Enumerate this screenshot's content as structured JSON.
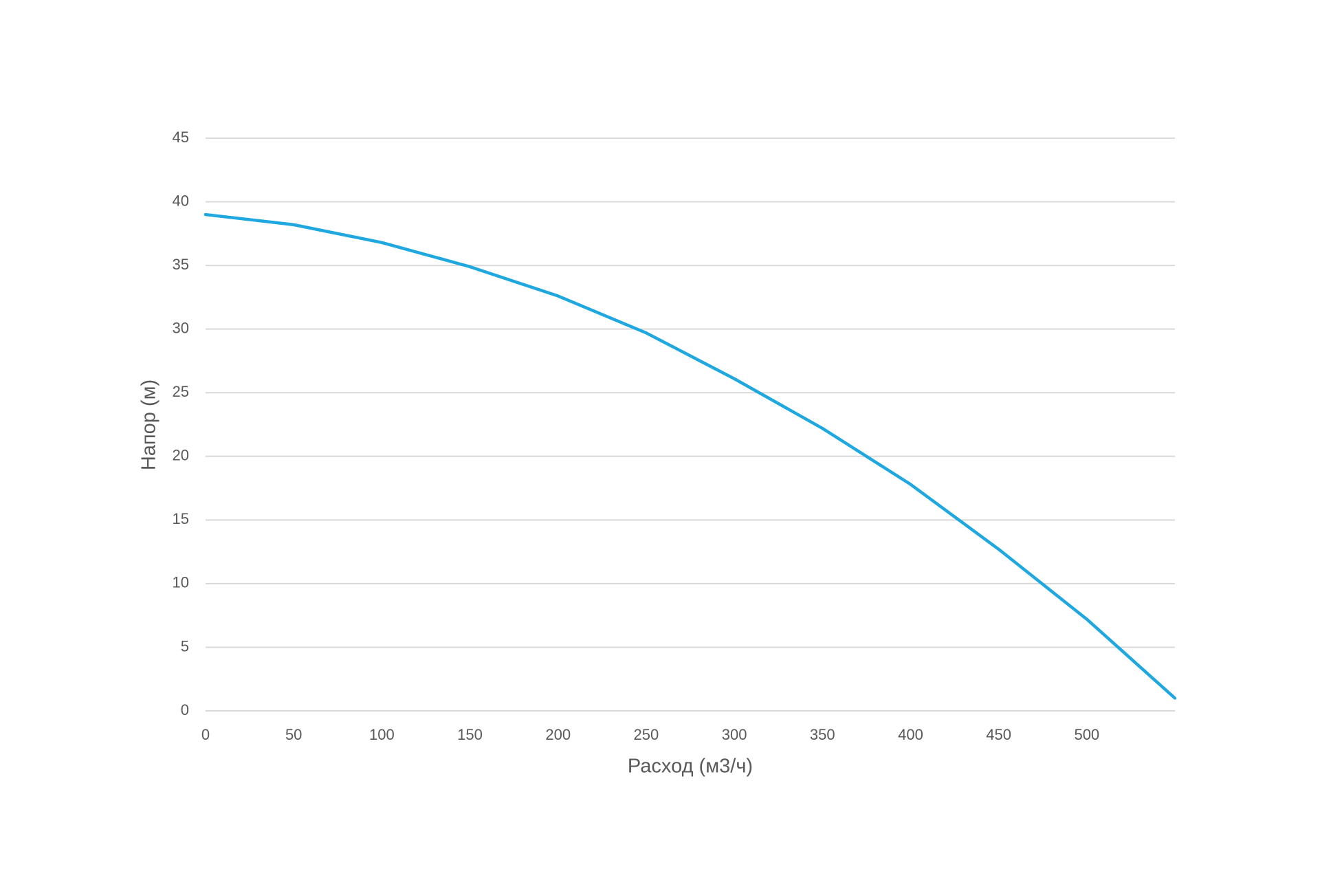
{
  "chart_data": {
    "type": "line",
    "x_label": "Расход (м3/ч)",
    "y_label": "Напор (м)",
    "x": [
      0,
      50,
      100,
      150,
      200,
      250,
      300,
      350,
      400,
      450,
      500,
      550
    ],
    "series": [
      {
        "color": "#1fa8e0",
        "values": [
          39,
          38.2,
          36.8,
          34.9,
          32.6,
          29.7,
          26.1,
          22.2,
          17.8,
          12.7,
          7.2,
          1
        ]
      }
    ],
    "xlim": [
      0,
      550
    ],
    "xticks": [
      0,
      50,
      100,
      150,
      200,
      250,
      300,
      350,
      400,
      450,
      500
    ],
    "ylim": [
      0,
      45
    ],
    "yticks": [
      0,
      5,
      10,
      15,
      20,
      25,
      30,
      35,
      40,
      45
    ],
    "grid": true
  }
}
